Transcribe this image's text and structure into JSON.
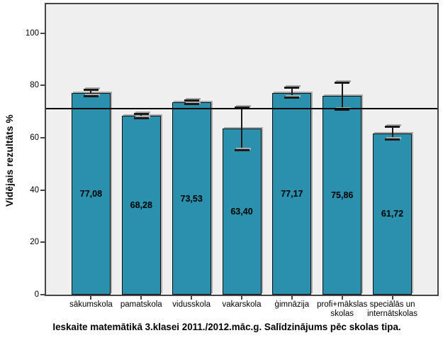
{
  "chart_data": {
    "type": "bar",
    "title": "Ieskaite matemātikā 3.klasei 2011./2012.māc.g. Salīdzinājums pēc skolas tipa.",
    "ylabel": "Vidējais rezultāts %",
    "xlabel": "",
    "categories": [
      "sākumskola",
      "pamatskola",
      "vidusskola",
      "vakarskola",
      "ģimnāzija",
      "profi+mākslas skolas",
      "speciālās un internātskolas"
    ],
    "values": [
      77.08,
      68.28,
      73.53,
      63.4,
      77.17,
      75.86,
      61.72
    ],
    "value_labels": [
      "77,08",
      "68,28",
      "73,53",
      "63,40",
      "77,17",
      "75,86",
      "61,72"
    ],
    "error_bars": [
      [
        75.8,
        78.4
      ],
      [
        67.5,
        69.1
      ],
      [
        72.9,
        74.2
      ],
      [
        55.3,
        71.6
      ],
      [
        75.2,
        79.2
      ],
      [
        70.7,
        81.0
      ],
      [
        59.3,
        64.1
      ]
    ],
    "reference_line": 71.05,
    "ylim": [
      0,
      111
    ],
    "yticks": [
      0,
      20,
      40,
      60,
      80,
      100
    ],
    "grid": false,
    "legend": "none",
    "colors": {
      "bar_fill": "#2b90ad",
      "bar_border": "#101010",
      "plot_background": "#efefef",
      "plot_border": "#454545",
      "reference_line": "#000000",
      "error_bar": "#1a1a1a",
      "shadow": "#ababab",
      "text": "#000000",
      "figure_background": "#ffffff"
    }
  }
}
